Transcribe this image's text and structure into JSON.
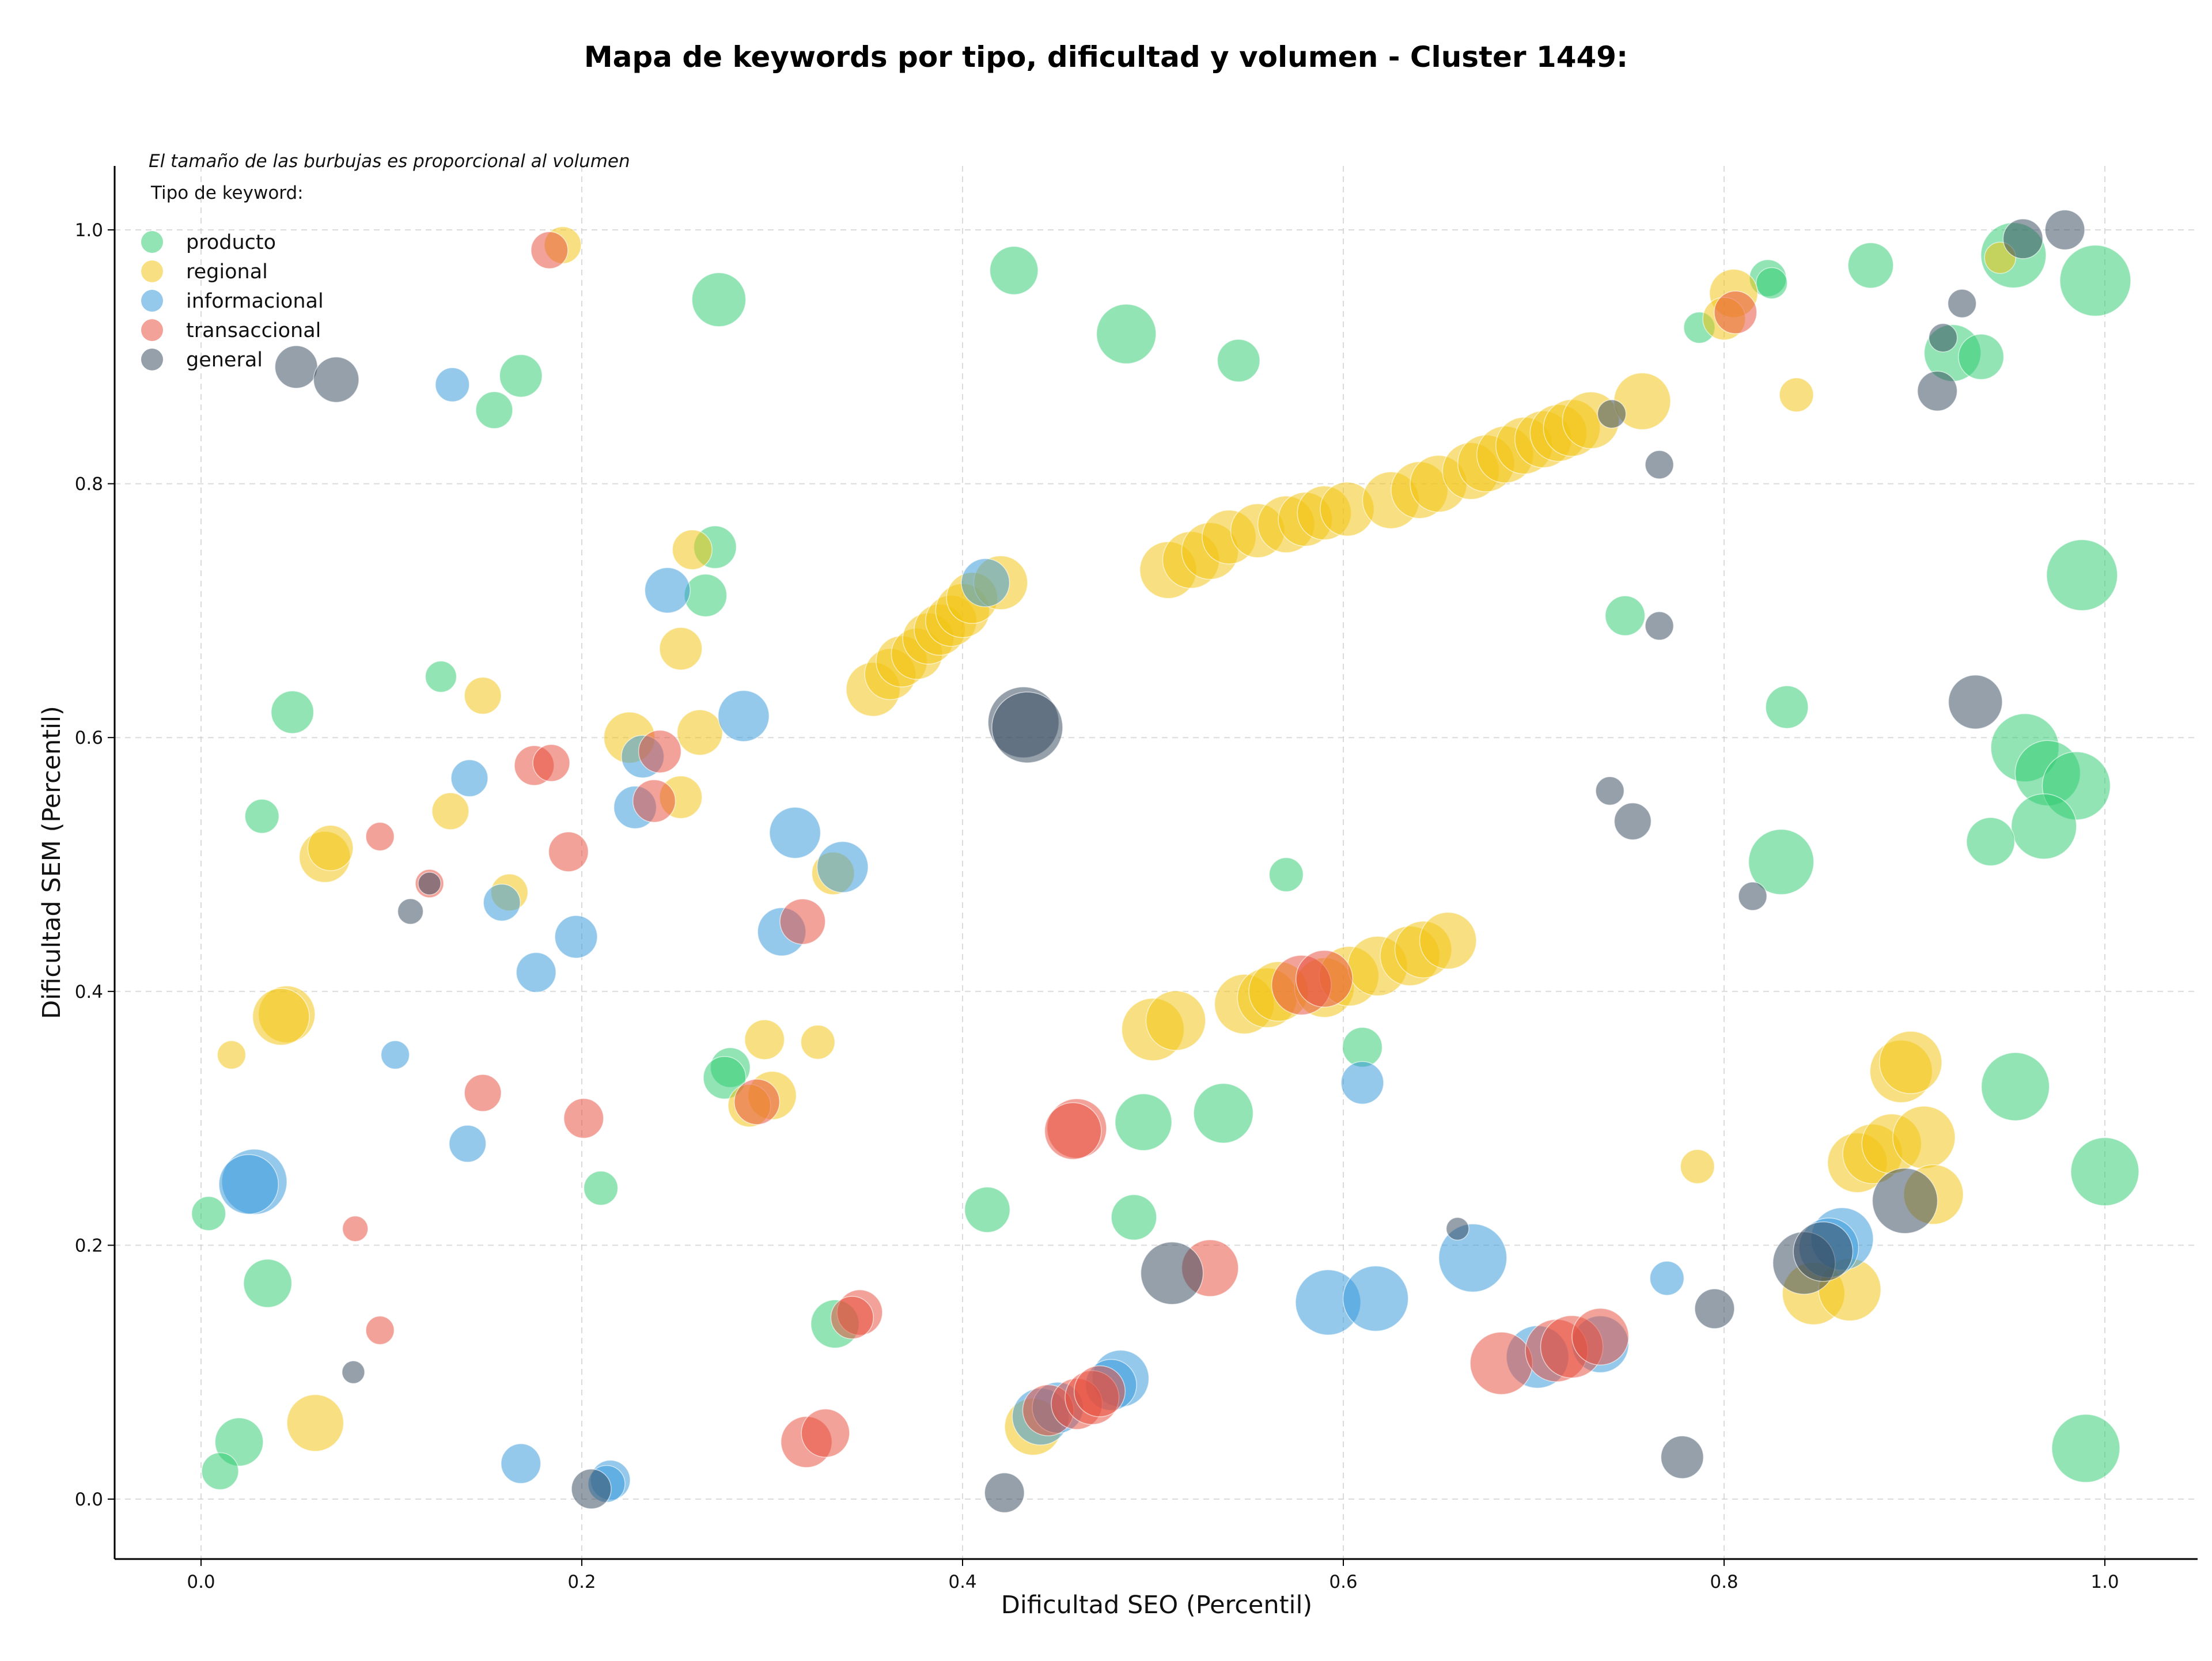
{
  "chart_data": {
    "type": "scatter",
    "title": "Mapa de keywords por tipo, dificultad y volumen - Cluster 1449:",
    "xlabel": "Dificultad SEO (Percentil)",
    "ylabel": "Dificultad SEM (Percentil)",
    "xlim": [
      -0.05,
      1.05
    ],
    "ylim": [
      -0.045,
      1.05
    ],
    "xticks": [
      "0.0",
      "0.2",
      "0.4",
      "0.6",
      "0.8",
      "1.0"
    ],
    "yticks": [
      "0.0",
      "0.2",
      "0.4",
      "0.6",
      "0.8",
      "1.0"
    ],
    "grid": true,
    "note": "El tamaño de las burbujas es proporcional al volumen",
    "legend": {
      "title": "Tipo de keyword:",
      "placement": "top-left",
      "entries": [
        {
          "name": "producto",
          "color": "#2ecc71"
        },
        {
          "name": "regional",
          "color": "#f1c40f"
        },
        {
          "name": "informacional",
          "color": "#3498db"
        },
        {
          "name": "transaccional",
          "color": "#e74c3c"
        },
        {
          "name": "general",
          "color": "#34495e"
        }
      ]
    },
    "series": [
      {
        "name": "producto",
        "color": "#2ecc71",
        "points": [
          [
            0.272,
            0.945,
            38
          ],
          [
            0.427,
            0.968,
            34
          ],
          [
            0.486,
            0.918,
            42
          ],
          [
            0.545,
            0.897,
            30
          ],
          [
            0.168,
            0.885,
            30
          ],
          [
            0.154,
            0.858,
            26
          ],
          [
            0.27,
            0.75,
            30
          ],
          [
            0.265,
            0.712,
            30
          ],
          [
            0.126,
            0.648,
            22
          ],
          [
            0.048,
            0.62,
            30
          ],
          [
            0.032,
            0.538,
            24
          ],
          [
            0.278,
            0.34,
            28
          ],
          [
            0.275,
            0.332,
            30
          ],
          [
            0.21,
            0.245,
            24
          ],
          [
            0.035,
            0.17,
            34
          ],
          [
            0.004,
            0.225,
            24
          ],
          [
            0.02,
            0.045,
            34
          ],
          [
            0.01,
            0.022,
            26
          ],
          [
            0.333,
            0.138,
            34
          ],
          [
            0.413,
            0.228,
            32
          ],
          [
            0.49,
            0.222,
            32
          ],
          [
            0.495,
            0.297,
            40
          ],
          [
            0.537,
            0.304,
            42
          ],
          [
            0.57,
            0.492,
            24
          ],
          [
            0.61,
            0.356,
            28
          ],
          [
            0.748,
            0.696,
            28
          ],
          [
            0.83,
            0.502,
            46
          ],
          [
            0.833,
            0.624,
            30
          ],
          [
            0.877,
            0.972,
            32
          ],
          [
            0.823,
            0.962,
            26
          ],
          [
            0.825,
            0.958,
            22
          ],
          [
            0.787,
            0.923,
            22
          ],
          [
            0.92,
            0.903,
            40
          ],
          [
            0.935,
            0.9,
            32
          ],
          [
            0.952,
            0.98,
            46
          ],
          [
            0.995,
            0.96,
            50
          ],
          [
            0.988,
            0.728,
            50
          ],
          [
            0.958,
            0.592,
            48
          ],
          [
            0.97,
            0.572,
            46
          ],
          [
            0.985,
            0.562,
            48
          ],
          [
            0.968,
            0.53,
            46
          ],
          [
            0.94,
            0.518,
            34
          ],
          [
            0.953,
            0.325,
            48
          ],
          [
            1.0,
            0.258,
            48
          ],
          [
            0.99,
            0.04,
            48
          ]
        ]
      },
      {
        "name": "regional",
        "color": "#f1c40f",
        "points": [
          [
            0.19,
            0.988,
            26
          ],
          [
            0.258,
            0.748,
            28
          ],
          [
            0.252,
            0.67,
            30
          ],
          [
            0.148,
            0.633,
            26
          ],
          [
            0.225,
            0.6,
            36
          ],
          [
            0.262,
            0.604,
            32
          ],
          [
            0.252,
            0.553,
            30
          ],
          [
            0.131,
            0.542,
            26
          ],
          [
            0.065,
            0.506,
            36
          ],
          [
            0.068,
            0.513,
            32
          ],
          [
            0.162,
            0.478,
            26
          ],
          [
            0.045,
            0.382,
            40
          ],
          [
            0.042,
            0.38,
            40
          ],
          [
            0.016,
            0.35,
            20
          ],
          [
            0.296,
            0.362,
            28
          ],
          [
            0.324,
            0.36,
            24
          ],
          [
            0.3,
            0.318,
            34
          ],
          [
            0.288,
            0.31,
            30
          ],
          [
            0.06,
            0.06,
            40
          ],
          [
            0.332,
            0.493,
            30
          ],
          [
            0.353,
            0.638,
            38
          ],
          [
            0.362,
            0.65,
            36
          ],
          [
            0.368,
            0.66,
            36
          ],
          [
            0.376,
            0.666,
            36
          ],
          [
            0.382,
            0.678,
            36
          ],
          [
            0.388,
            0.685,
            36
          ],
          [
            0.394,
            0.692,
            36
          ],
          [
            0.4,
            0.7,
            38
          ],
          [
            0.405,
            0.71,
            36
          ],
          [
            0.42,
            0.722,
            38
          ],
          [
            0.508,
            0.732,
            40
          ],
          [
            0.52,
            0.74,
            40
          ],
          [
            0.53,
            0.747,
            40
          ],
          [
            0.54,
            0.758,
            38
          ],
          [
            0.555,
            0.763,
            38
          ],
          [
            0.57,
            0.768,
            40
          ],
          [
            0.58,
            0.772,
            38
          ],
          [
            0.59,
            0.777,
            38
          ],
          [
            0.602,
            0.78,
            38
          ],
          [
            0.625,
            0.787,
            40
          ],
          [
            0.64,
            0.795,
            40
          ],
          [
            0.65,
            0.8,
            40
          ],
          [
            0.667,
            0.81,
            40
          ],
          [
            0.675,
            0.816,
            40
          ],
          [
            0.685,
            0.823,
            40
          ],
          [
            0.695,
            0.83,
            40
          ],
          [
            0.705,
            0.835,
            40
          ],
          [
            0.713,
            0.84,
            40
          ],
          [
            0.72,
            0.844,
            40
          ],
          [
            0.73,
            0.85,
            40
          ],
          [
            0.757,
            0.865,
            40
          ],
          [
            0.838,
            0.87,
            24
          ],
          [
            0.805,
            0.95,
            34
          ],
          [
            0.8,
            0.93,
            30
          ],
          [
            0.945,
            0.978,
            22
          ],
          [
            0.5,
            0.37,
            44
          ],
          [
            0.512,
            0.377,
            42
          ],
          [
            0.548,
            0.39,
            42
          ],
          [
            0.56,
            0.395,
            42
          ],
          [
            0.566,
            0.4,
            42
          ],
          [
            0.59,
            0.403,
            42
          ],
          [
            0.603,
            0.412,
            42
          ],
          [
            0.618,
            0.42,
            42
          ],
          [
            0.635,
            0.428,
            42
          ],
          [
            0.642,
            0.433,
            40
          ],
          [
            0.655,
            0.44,
            40
          ],
          [
            0.786,
            0.262,
            24
          ],
          [
            0.847,
            0.162,
            44
          ],
          [
            0.866,
            0.165,
            44
          ],
          [
            0.87,
            0.265,
            42
          ],
          [
            0.878,
            0.272,
            42
          ],
          [
            0.888,
            0.28,
            42
          ],
          [
            0.893,
            0.337,
            44
          ],
          [
            0.898,
            0.344,
            44
          ],
          [
            0.905,
            0.285,
            44
          ],
          [
            0.91,
            0.24,
            42
          ],
          [
            0.437,
            0.057,
            40
          ]
        ]
      },
      {
        "name": "informacional",
        "color": "#3498db",
        "points": [
          [
            0.132,
            0.878,
            24
          ],
          [
            0.245,
            0.716,
            32
          ],
          [
            0.141,
            0.568,
            26
          ],
          [
            0.285,
            0.617,
            36
          ],
          [
            0.232,
            0.585,
            30
          ],
          [
            0.228,
            0.545,
            30
          ],
          [
            0.312,
            0.525,
            36
          ],
          [
            0.337,
            0.498,
            36
          ],
          [
            0.158,
            0.47,
            26
          ],
          [
            0.197,
            0.443,
            30
          ],
          [
            0.176,
            0.415,
            28
          ],
          [
            0.305,
            0.447,
            34
          ],
          [
            0.102,
            0.35,
            20
          ],
          [
            0.14,
            0.28,
            26
          ],
          [
            0.028,
            0.25,
            46
          ],
          [
            0.025,
            0.248,
            42
          ],
          [
            0.168,
            0.028,
            28
          ],
          [
            0.215,
            0.015,
            28
          ],
          [
            0.213,
            0.012,
            26
          ],
          [
            0.412,
            0.722,
            34
          ],
          [
            0.61,
            0.328,
            30
          ],
          [
            0.592,
            0.155,
            46
          ],
          [
            0.617,
            0.158,
            46
          ],
          [
            0.668,
            0.19,
            48
          ],
          [
            0.77,
            0.174,
            24
          ],
          [
            0.702,
            0.112,
            44
          ],
          [
            0.735,
            0.122,
            40
          ],
          [
            0.483,
            0.095,
            40
          ],
          [
            0.478,
            0.09,
            36
          ],
          [
            0.441,
            0.065,
            40
          ],
          [
            0.45,
            0.072,
            36
          ],
          [
            0.862,
            0.205,
            44
          ],
          [
            0.855,
            0.198,
            42
          ]
        ]
      },
      {
        "name": "transaccional",
        "color": "#e74c3c",
        "points": [
          [
            0.183,
            0.984,
            26
          ],
          [
            0.175,
            0.578,
            28
          ],
          [
            0.184,
            0.58,
            26
          ],
          [
            0.241,
            0.589,
            30
          ],
          [
            0.238,
            0.55,
            30
          ],
          [
            0.094,
            0.522,
            20
          ],
          [
            0.193,
            0.51,
            28
          ],
          [
            0.12,
            0.485,
            20
          ],
          [
            0.316,
            0.455,
            32
          ],
          [
            0.148,
            0.32,
            26
          ],
          [
            0.201,
            0.3,
            28
          ],
          [
            0.081,
            0.213,
            18
          ],
          [
            0.094,
            0.133,
            20
          ],
          [
            0.292,
            0.313,
            32
          ],
          [
            0.346,
            0.147,
            32
          ],
          [
            0.342,
            0.143,
            30
          ],
          [
            0.318,
            0.045,
            36
          ],
          [
            0.328,
            0.052,
            34
          ],
          [
            0.46,
            0.292,
            42
          ],
          [
            0.458,
            0.29,
            40
          ],
          [
            0.53,
            0.182,
            40
          ],
          [
            0.578,
            0.405,
            42
          ],
          [
            0.59,
            0.41,
            40
          ],
          [
            0.683,
            0.107,
            44
          ],
          [
            0.712,
            0.117,
            44
          ],
          [
            0.72,
            0.12,
            44
          ],
          [
            0.735,
            0.128,
            40
          ],
          [
            0.806,
            0.935,
            30
          ],
          [
            0.445,
            0.07,
            36
          ],
          [
            0.46,
            0.075,
            36
          ],
          [
            0.468,
            0.08,
            38
          ],
          [
            0.472,
            0.085,
            36
          ]
        ]
      },
      {
        "name": "general",
        "color": "#34495e",
        "points": [
          [
            0.05,
            0.892,
            30
          ],
          [
            0.071,
            0.882,
            32
          ],
          [
            0.11,
            0.463,
            18
          ],
          [
            0.12,
            0.485,
            16
          ],
          [
            0.205,
            0.008,
            28
          ],
          [
            0.422,
            0.005,
            28
          ],
          [
            0.432,
            0.612,
            50
          ],
          [
            0.434,
            0.608,
            50
          ],
          [
            0.51,
            0.178,
            44
          ],
          [
            0.66,
            0.213,
            16
          ],
          [
            0.741,
            0.855,
            20
          ],
          [
            0.766,
            0.815,
            20
          ],
          [
            0.766,
            0.688,
            20
          ],
          [
            0.74,
            0.558,
            20
          ],
          [
            0.752,
            0.534,
            26
          ],
          [
            0.815,
            0.475,
            20
          ],
          [
            0.778,
            0.033,
            30
          ],
          [
            0.795,
            0.15,
            28
          ],
          [
            0.842,
            0.186,
            44
          ],
          [
            0.852,
            0.195,
            42
          ],
          [
            0.895,
            0.235,
            46
          ],
          [
            0.912,
            0.873,
            28
          ],
          [
            0.925,
            0.942,
            20
          ],
          [
            0.915,
            0.915,
            20
          ],
          [
            0.932,
            0.628,
            38
          ],
          [
            0.957,
            0.993,
            28
          ],
          [
            0.979,
            1.0,
            28
          ],
          [
            0.08,
            0.1,
            16
          ]
        ]
      }
    ]
  }
}
